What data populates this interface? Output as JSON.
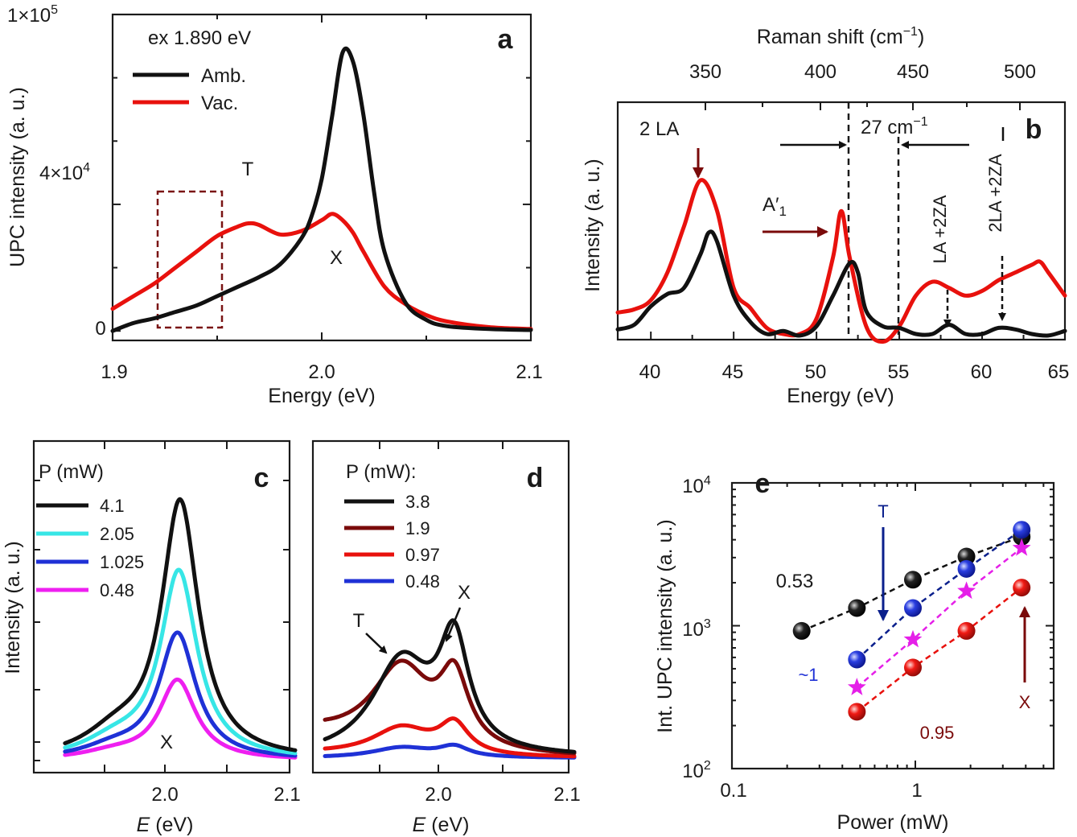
{
  "colors": {
    "black": "#111111",
    "red": "#e8110d",
    "cyan": "#37e6e6",
    "blue": "#1f31d6",
    "magenta": "#ee1ff0",
    "darkred": "#7a0a0a",
    "navy": "#0a1f8c",
    "pink_star": "#e51fe8"
  },
  "panels": {
    "a": {
      "letter": "a",
      "xlabel": "Energy (eV)",
      "ylabel": "UPC intensity (a. u.)",
      "excitation": "ex 1.890 eV",
      "xticks": [
        "1.9",
        "2.0",
        "2.1"
      ],
      "ytick_top_base": "1×10",
      "ytick_top_exp": "5",
      "ytick_mid_base": "4×10",
      "ytick_mid_exp": "4",
      "ytick_zero": "0",
      "legend": [
        "Amb.",
        "Vac."
      ],
      "label_T": "T",
      "label_X": "X"
    },
    "b": {
      "letter": "b",
      "xlabel": "Energy (eV)",
      "ylabel": "Intensity (a. u.)",
      "top_xlabel_base": "Raman shift (cm",
      "top_xlabel_exp": "−1",
      "top_xlabel_end": ")",
      "xticks": [
        "40",
        "45",
        "50",
        "55",
        "60",
        "65"
      ],
      "top_xticks": [
        "350",
        "400",
        "450",
        "500"
      ],
      "label_2LA": "2 LA",
      "label_A1_base": "A′",
      "label_A1_sub": "1",
      "shift_base": "27 cm",
      "shift_exp": "−1",
      "label_LA2ZA": "LA +2ZA",
      "label_2LA2ZA": "2LA +2ZA"
    },
    "c": {
      "letter": "c",
      "xlabel_italic": "E",
      "xlabel_rest": " (eV)",
      "ylabel": "Intensity (a. u.)",
      "xticks": [
        "2.0",
        "2.1"
      ],
      "legend_title": "P (mW)",
      "legend": [
        "4.1",
        "2.05",
        "1.025",
        "0.48"
      ],
      "label_X": "X"
    },
    "d": {
      "letter": "d",
      "xlabel_italic": "E",
      "xlabel_rest": " (eV)",
      "xticks": [
        "2.0",
        "2.1"
      ],
      "legend_title": "P (mW):",
      "legend": [
        "3.8",
        "1.9",
        "0.97",
        "0.48"
      ],
      "label_T": "T",
      "label_X": "X"
    },
    "e": {
      "letter": "e",
      "xlabel": "Power (mW)",
      "ylabel": "Int. UPC intensity (a. u.)",
      "xticks": [
        "0.1",
        "1"
      ],
      "ytick_base": "10",
      "ytick_exps": [
        "2",
        "3",
        "4"
      ],
      "slope_black": "0.53",
      "slope_blue": "~1",
      "slope_red": "0.95",
      "label_T": "T",
      "label_X": "X"
    }
  },
  "chart_data": [
    {
      "panel": "a",
      "type": "line",
      "xlabel": "Energy (eV)",
      "ylabel": "UPC intensity (a. u.)",
      "xlim": [
        1.9,
        2.1
      ],
      "ylim": [
        -3000,
        100000
      ],
      "series": [
        {
          "name": "Amb.",
          "color": "#111111",
          "x": [
            1.9,
            1.91,
            1.92,
            1.93,
            1.94,
            1.95,
            1.96,
            1.97,
            1.98,
            1.99,
            1.995,
            2.0,
            2.005,
            2.01,
            2.015,
            2.02,
            2.025,
            2.03,
            2.04,
            2.05,
            2.06,
            2.08,
            2.1
          ],
          "y": [
            0,
            2500,
            4000,
            6000,
            8000,
            11000,
            14000,
            17000,
            21000,
            29000,
            36000,
            48000,
            68000,
            88000,
            85000,
            68000,
            44000,
            25000,
            9000,
            3500,
            1500,
            600,
            300
          ]
        },
        {
          "name": "Vac.",
          "color": "#e8110d",
          "x": [
            1.9,
            1.91,
            1.92,
            1.93,
            1.94,
            1.95,
            1.96,
            1.965,
            1.97,
            1.98,
            1.99,
            2.0,
            2.005,
            2.01,
            2.015,
            2.02,
            2.03,
            2.04,
            2.05,
            2.06,
            2.08,
            2.1
          ],
          "y": [
            7000,
            11000,
            15000,
            20000,
            25000,
            30000,
            33000,
            34000,
            33500,
            30500,
            31500,
            35000,
            37000,
            35000,
            31000,
            25000,
            14000,
            8500,
            5000,
            3000,
            1200,
            600
          ]
        }
      ],
      "annotations": [
        "ex 1.890 eV",
        "T",
        "X",
        "dashed box 1.92–1.95 eV"
      ]
    },
    {
      "panel": "b",
      "type": "line",
      "xlabel": "Energy (eV)",
      "ylabel": "Intensity (a. u.)",
      "top_xlabel": "Raman shift (cm−1)",
      "xlim": [
        38,
        65
      ],
      "series": [
        {
          "name": "Vac.",
          "color": "#e8110d",
          "x": [
            38,
            39,
            40,
            41,
            42,
            43,
            44,
            45,
            46,
            47,
            48,
            49,
            50,
            51,
            51.5,
            52,
            53,
            54,
            55,
            56,
            57,
            58,
            59,
            60,
            61,
            62,
            63,
            63.5,
            64,
            65
          ],
          "y": [
            0.14,
            0.16,
            0.22,
            0.4,
            0.7,
            1.0,
            0.8,
            0.3,
            0.17,
            0.04,
            0.0,
            0.0,
            0.1,
            0.5,
            0.8,
            0.5,
            0.05,
            -0.05,
            0.05,
            0.25,
            0.34,
            0.3,
            0.25,
            0.28,
            0.35,
            0.4,
            0.45,
            0.47,
            0.4,
            0.25
          ]
        },
        {
          "name": "Amb.",
          "color": "#111111",
          "x": [
            38,
            39,
            40,
            41,
            42,
            43,
            43.5,
            44,
            45,
            46,
            47,
            48,
            49,
            50,
            51,
            52,
            52.5,
            53,
            54,
            55,
            56,
            57,
            58,
            59,
            60,
            61,
            62,
            63,
            64,
            65
          ],
          "y": [
            0.03,
            0.06,
            0.18,
            0.26,
            0.3,
            0.52,
            0.66,
            0.6,
            0.25,
            0.08,
            0.0,
            0.02,
            -0.01,
            0.05,
            0.25,
            0.46,
            0.4,
            0.15,
            0.05,
            0.04,
            0.0,
            0.0,
            0.06,
            0.0,
            0.0,
            0.04,
            0.03,
            0.0,
            -0.01,
            0.02
          ]
        }
      ],
      "reference_lines_eV": [
        52,
        55
      ],
      "top_ticks_cm1": [
        350,
        400,
        450,
        500
      ],
      "annotations": [
        "2 LA",
        "A′1",
        "27 cm−1",
        "LA +2ZA",
        "2LA +2ZA"
      ]
    },
    {
      "panel": "c",
      "type": "line",
      "xlabel": "E (eV)",
      "ylabel": "Intensity (a. u.)",
      "xlim": [
        1.9,
        2.1
      ],
      "series": [
        {
          "name": "4.1",
          "color": "#111111",
          "peak_x": 2.01,
          "peak": 1.0
        },
        {
          "name": "2.05",
          "color": "#37e6e6",
          "peak_x": 2.009,
          "peak": 0.73
        },
        {
          "name": "1.025",
          "color": "#1f31d6",
          "peak_x": 2.008,
          "peak": 0.49
        },
        {
          "name": "0.48",
          "color": "#ee1ff0",
          "peak_x": 2.008,
          "peak": 0.31
        }
      ],
      "annotations": [
        "X"
      ]
    },
    {
      "panel": "d",
      "type": "line",
      "xlabel": "E (eV)",
      "xlim": [
        1.9,
        2.1
      ],
      "series": [
        {
          "name": "3.8",
          "color": "#111111",
          "T_peak": 0.37,
          "X_peak": 0.42
        },
        {
          "name": "1.9",
          "color": "#7a0a0a",
          "T_peak": 0.32,
          "X_peak": 0.28
        },
        {
          "name": "0.97",
          "color": "#e8110d",
          "T_peak": 0.11,
          "X_peak": 0.12
        },
        {
          "name": "0.48",
          "color": "#1f31d6",
          "T_peak": 0.04,
          "X_peak": 0.04
        }
      ],
      "annotations": [
        "T",
        "X"
      ]
    },
    {
      "panel": "e",
      "type": "scatter",
      "xscale": "log",
      "yscale": "log",
      "xlabel": "Power (mW)",
      "ylabel": "Int. UPC intensity (a. u.)",
      "xlim": [
        0.1,
        5
      ],
      "ylim": [
        100,
        10000
      ],
      "series": [
        {
          "name": "black",
          "color": "#111111",
          "marker": "sphere",
          "slope": "0.53",
          "x": [
            0.24,
            0.48,
            0.97,
            1.9,
            3.8
          ],
          "y": [
            920,
            1330,
            2100,
            3050,
            4200
          ]
        },
        {
          "name": "T",
          "color": "#1f31d6",
          "marker": "sphere",
          "slope": "~1",
          "x": [
            0.48,
            0.97,
            1.9,
            3.8
          ],
          "y": [
            580,
            1330,
            2500,
            4700
          ]
        },
        {
          "name": "star",
          "color": "#e51fe8",
          "marker": "star",
          "x": [
            0.48,
            0.97,
            1.9,
            3.8
          ],
          "y": [
            370,
            800,
            1750,
            3500
          ]
        },
        {
          "name": "X",
          "color": "#e8110d",
          "marker": "sphere",
          "slope": "0.95",
          "x": [
            0.48,
            0.97,
            1.9,
            3.8
          ],
          "y": [
            250,
            510,
            920,
            1850
          ]
        }
      ],
      "annotations": [
        "T",
        "X",
        "0.53",
        "~1",
        "0.95"
      ]
    }
  ]
}
